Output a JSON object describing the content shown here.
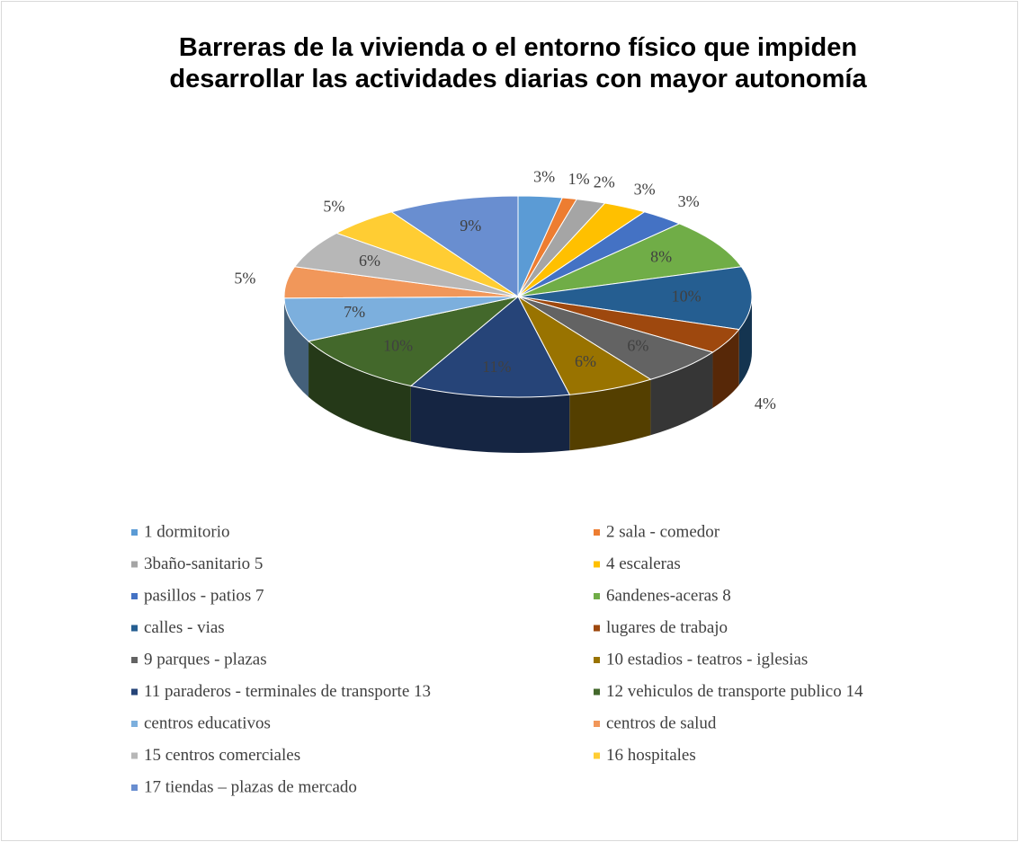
{
  "chart_data": {
    "type": "pie3d",
    "title": "Barreras de la vivienda o el entorno físico que impiden desarrollar las actividades diarias con mayor autonomía",
    "title_lines": [
      "Barreras de la vivienda o el entorno físico que impiden",
      "desarrollar las actividades diarias con mayor autonomía"
    ],
    "categories": [
      "1 dormitorio",
      "2 sala - comedor",
      "3baño-sanitario 5",
      "4 escaleras",
      "pasillos - patios  7",
      "6andenes-aceras 8",
      "calles - vias",
      "lugares de trabajo",
      "9 parques - plazas",
      "10 estadios - teatros - iglesias",
      "11 paraderos - terminales de transporte 13",
      "12 vehiculos de transporte publico 14",
      "centros educativos",
      "centros de salud",
      "15 centros comerciales",
      "16 hospitales",
      "17 tiendas – plazas de mercado"
    ],
    "values": [
      3,
      1,
      2,
      3,
      3,
      8,
      10,
      4,
      6,
      6,
      11,
      10,
      7,
      5,
      6,
      5,
      9
    ],
    "value_labels": [
      "3%",
      "1%",
      "2%",
      "3%",
      "3%",
      "8%",
      "10%",
      "4%",
      "6%",
      "6%",
      "11%",
      "10%",
      "7%",
      "5%",
      "6%",
      "5%",
      "9%"
    ],
    "colors": [
      "#5b9bd5",
      "#ed7d31",
      "#a5a5a5",
      "#ffc000",
      "#4472c4",
      "#70ad47",
      "#255e91",
      "#9e480e",
      "#636363",
      "#997300",
      "#264478",
      "#43682b",
      "#7cafdd",
      "#f1975a",
      "#b7b7b7",
      "#ffcd33",
      "#698ed0"
    ],
    "legend": "bottom"
  }
}
